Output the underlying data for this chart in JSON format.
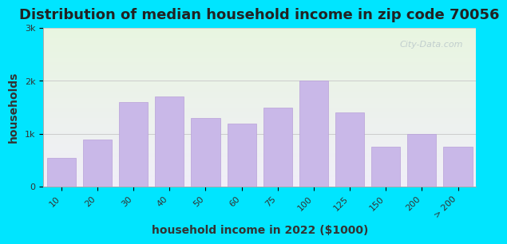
{
  "title": "Distribution of median household income in zip code 70056",
  "xlabel": "household income in 2022 ($1000)",
  "ylabel": "households",
  "categories": [
    "10",
    "20",
    "30",
    "40",
    "50",
    "60",
    "75",
    "100",
    "125",
    "150",
    "200",
    "> 200"
  ],
  "values": [
    550,
    900,
    1600,
    1700,
    1300,
    1200,
    1500,
    2000,
    1400,
    750,
    1000,
    750
  ],
  "bar_color": "#c9b8e8",
  "bar_edge_color": "#b8a0d8",
  "background_outer": "#00e5ff",
  "background_inner_top": "#e8f5e0",
  "background_inner_bottom": "#f0eef8",
  "yticks": [
    0,
    1000,
    2000,
    3000
  ],
  "ytick_labels": [
    "0",
    "1k",
    "2k",
    "3k"
  ],
  "ylim": [
    0,
    3000
  ],
  "watermark": "City-Data.com",
  "title_fontsize": 13,
  "axis_label_fontsize": 10,
  "tick_fontsize": 8
}
